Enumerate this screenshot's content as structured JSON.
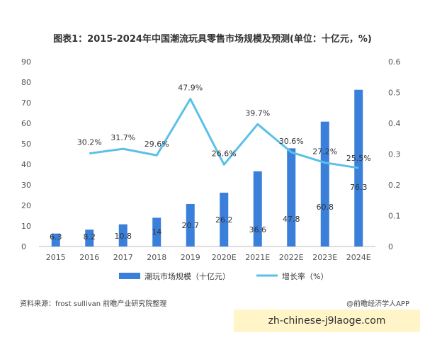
{
  "title": "图表1：2015-2024年中国潮流玩具零售市场规模及预测(单位：十亿元，%)",
  "source": "资料来源：frost sullivan 前瞻产业研究院整理",
  "brand": "@前瞻经济学人APP",
  "banner": "zh-chinese-j9laoge.com",
  "chart_data": {
    "type": "bar",
    "title": "图表1：2015-2024年中国潮流玩具零售市场规模及预测(单位：十亿元，%)",
    "categories": [
      "2015",
      "2016",
      "2017",
      "2018",
      "2019",
      "2020E",
      "2021E",
      "2022E",
      "2023E",
      "2024E"
    ],
    "series": [
      {
        "name": "潮玩市场规模（十亿元）",
        "type": "bar",
        "axis": "left",
        "color": "#3a7fd9",
        "values": [
          6.3,
          8.2,
          10.8,
          14,
          20.7,
          26.2,
          36.6,
          47.8,
          60.8,
          76.3
        ],
        "labels": [
          "6.3",
          "8.2",
          "10.8",
          "14",
          "20.7",
          "26.2",
          "36.6",
          "47.8",
          "60.8",
          "76.3"
        ]
      },
      {
        "name": "增长率（%）",
        "type": "line",
        "axis": "right",
        "color": "#5bc0e8",
        "values": [
          null,
          0.302,
          0.317,
          0.296,
          0.479,
          0.266,
          0.397,
          0.306,
          0.272,
          0.255
        ],
        "labels": [
          "",
          "30.2%",
          "31.7%",
          "29.6%",
          "47.9%",
          "26.6%",
          "39.7%",
          "30.6%",
          "27.2%",
          "25.5%"
        ]
      }
    ],
    "y_left": {
      "min": 0,
      "max": 90,
      "ticks": [
        "0",
        "10",
        "20",
        "30",
        "40",
        "50",
        "60",
        "70",
        "80",
        "90"
      ]
    },
    "y_right": {
      "min": 0,
      "max": 0.6,
      "ticks": [
        "0",
        "0.1",
        "0.2",
        "0.3",
        "0.4",
        "0.5",
        "0.6"
      ]
    },
    "grid": false,
    "legend": "bottom"
  }
}
